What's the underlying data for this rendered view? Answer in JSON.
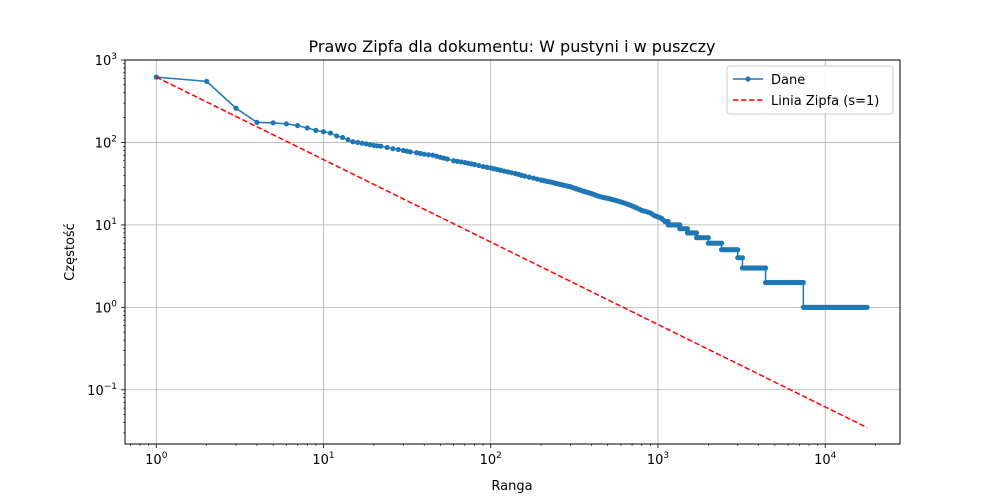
{
  "chart_data": {
    "type": "line",
    "title": "Prawo Zipfa dla dokumentu: W pustyni i w puszczy",
    "xlabel": "Ranga",
    "ylabel": "Częstość",
    "xscale": "log",
    "yscale": "log",
    "xlim": [
      0.65,
      28000
    ],
    "ylim": [
      0.022,
      1000
    ],
    "x_ticks": [
      {
        "value": 1,
        "base": "10",
        "exp": "0"
      },
      {
        "value": 10,
        "base": "10",
        "exp": "1"
      },
      {
        "value": 100,
        "base": "10",
        "exp": "2"
      },
      {
        "value": 1000,
        "base": "10",
        "exp": "3"
      },
      {
        "value": 10000,
        "base": "10",
        "exp": "4"
      }
    ],
    "y_ticks": [
      {
        "value": 0.1,
        "base": "10",
        "exp": "−1"
      },
      {
        "value": 1,
        "base": "10",
        "exp": "0"
      },
      {
        "value": 10,
        "base": "10",
        "exp": "1"
      },
      {
        "value": 100,
        "base": "10",
        "exp": "2"
      },
      {
        "value": 1000,
        "base": "10",
        "exp": "3"
      }
    ],
    "grid": true,
    "legend_position": "top-right",
    "series": [
      {
        "name": "Dane",
        "color": "#1f77b4",
        "style": "solid-with-markers",
        "points": [
          [
            1,
            620
          ],
          [
            2,
            550
          ],
          [
            3,
            260
          ],
          [
            4,
            175
          ],
          [
            5,
            173
          ],
          [
            6,
            168
          ],
          [
            7,
            160
          ],
          [
            8,
            150
          ],
          [
            9,
            140
          ],
          [
            10,
            135
          ],
          [
            11,
            130
          ],
          [
            12,
            120
          ],
          [
            13,
            115
          ],
          [
            14,
            108
          ],
          [
            15,
            102
          ],
          [
            16,
            100
          ],
          [
            17,
            98
          ],
          [
            18,
            96
          ],
          [
            19,
            94
          ],
          [
            20,
            92
          ],
          [
            22,
            90
          ],
          [
            24,
            87
          ],
          [
            26,
            84
          ],
          [
            28,
            82
          ],
          [
            30,
            80
          ],
          [
            33,
            77
          ],
          [
            36,
            75
          ],
          [
            40,
            72
          ],
          [
            45,
            70
          ],
          [
            50,
            66
          ],
          [
            55,
            63
          ],
          [
            60,
            60
          ],
          [
            70,
            57
          ],
          [
            80,
            54
          ],
          [
            90,
            51
          ],
          [
            100,
            49
          ],
          [
            120,
            45
          ],
          [
            140,
            42
          ],
          [
            160,
            39
          ],
          [
            180,
            37
          ],
          [
            200,
            35
          ],
          [
            230,
            33
          ],
          [
            260,
            31
          ],
          [
            300,
            29
          ],
          [
            350,
            26
          ],
          [
            400,
            24
          ],
          [
            450,
            22
          ],
          [
            500,
            21
          ],
          [
            550,
            20
          ],
          [
            600,
            19
          ],
          [
            650,
            18
          ],
          [
            700,
            17
          ],
          [
            750,
            16
          ],
          [
            800,
            15
          ],
          [
            850,
            14.5
          ],
          [
            900,
            14
          ],
          [
            950,
            13
          ],
          [
            1000,
            12.5
          ],
          [
            1050,
            12
          ],
          [
            1100,
            11
          ],
          [
            1150,
            11
          ],
          [
            1150,
            10
          ],
          [
            1350,
            10
          ],
          [
            1350,
            9
          ],
          [
            1500,
            9
          ],
          [
            1500,
            8
          ],
          [
            1700,
            8
          ],
          [
            1700,
            7
          ],
          [
            2000,
            7
          ],
          [
            2000,
            6
          ],
          [
            2400,
            6
          ],
          [
            2400,
            5
          ],
          [
            3000,
            5
          ],
          [
            3000,
            4
          ],
          [
            3200,
            4
          ],
          [
            3200,
            3
          ],
          [
            4400,
            3
          ],
          [
            4400,
            2
          ],
          [
            7400,
            2
          ],
          [
            7400,
            1
          ],
          [
            17800,
            1
          ]
        ]
      },
      {
        "name": "Linia Zipfa (s=1)",
        "color": "#ff0000",
        "style": "dashed",
        "points": [
          [
            1,
            620
          ],
          [
            17800,
            0.0348
          ]
        ]
      }
    ]
  }
}
